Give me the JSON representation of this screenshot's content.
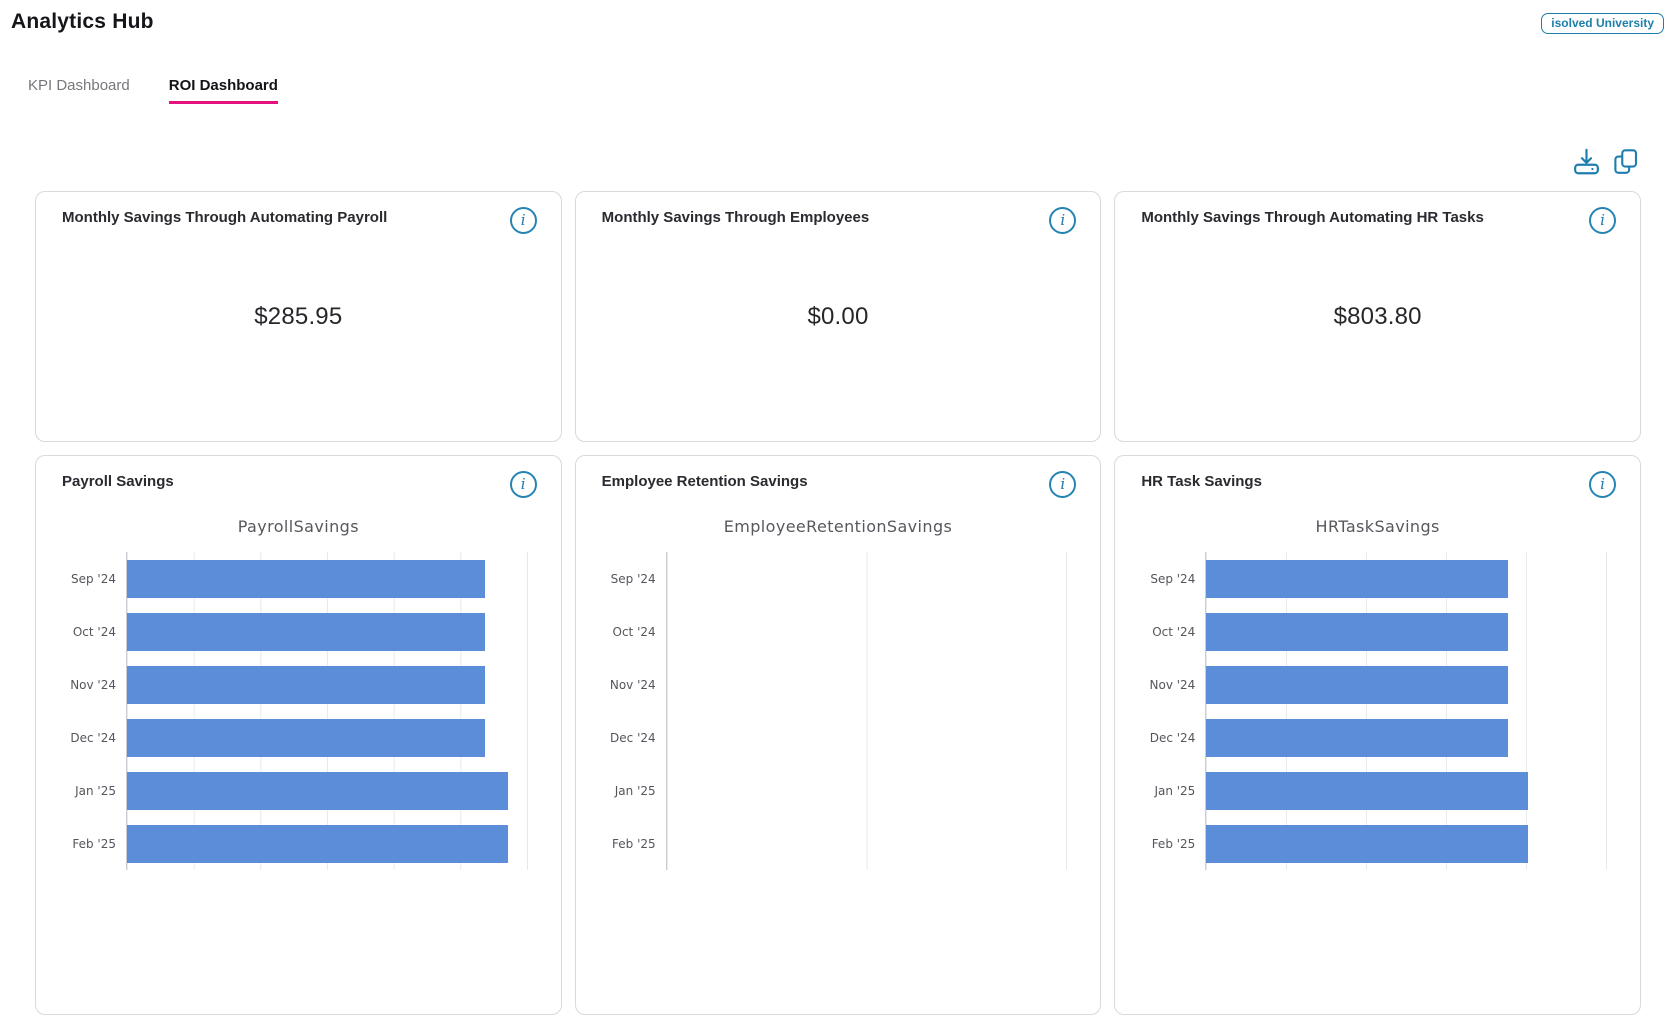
{
  "page": {
    "title": "Analytics Hub"
  },
  "header": {
    "badge_label": "isolved University"
  },
  "tabs": [
    {
      "label": "KPI Dashboard",
      "active": false
    },
    {
      "label": "ROI Dashboard",
      "active": true
    }
  ],
  "toolbar": {
    "icons": [
      "download-icon",
      "copy-icon"
    ]
  },
  "icons": {
    "info_glyph": "i"
  },
  "colors": {
    "accent_pink": "#e4117e",
    "icon_blue": "#1e7fae",
    "badge_blue": "#1d7fac",
    "bar_blue": "#5b8dd9",
    "gridline": "#e8eaee",
    "axis_line": "#c9cdd4"
  },
  "kpi_cards": [
    {
      "title": "Monthly Savings Through Automating Payroll",
      "value": "$285.95"
    },
    {
      "title": "Monthly Savings Through Employees",
      "value": "$0.00"
    },
    {
      "title": "Monthly Savings Through Automating HR Tasks",
      "value": "$803.80"
    }
  ],
  "chart_cards": [
    {
      "title": "Payroll Savings"
    },
    {
      "title": "Employee Retention Savings"
    },
    {
      "title": "HR Task Savings"
    }
  ],
  "chart_data": [
    {
      "type": "bar",
      "orientation": "horizontal",
      "title": "PayrollSavings",
      "categories": [
        "Sep '24",
        "Oct '24",
        "Nov '24",
        "Dec '24",
        "Jan '25",
        "Feb '25"
      ],
      "values": [
        268.7,
        268.7,
        268.7,
        268.7,
        285.95,
        285.95
      ],
      "xlim": [
        0,
        300
      ],
      "grid_interval": 50,
      "grid": true,
      "legend": false,
      "xlabel": "",
      "ylabel": "",
      "bar_color": "#5b8dd9",
      "note": "values estimated from gridlines; last row cut off by viewport bottom"
    },
    {
      "type": "bar",
      "orientation": "horizontal",
      "title": "EmployeeRetentionSavings",
      "categories": [
        "Sep '24",
        "Oct '24",
        "Nov '24",
        "Dec '24",
        "Jan '25",
        "Feb '25"
      ],
      "values": [
        0,
        0,
        0,
        0,
        0,
        0
      ],
      "xlim": [
        0,
        1
      ],
      "grid_interval": 0.5,
      "grid": true,
      "legend": false,
      "xlabel": "",
      "ylabel": "",
      "bar_color": "#5b8dd9",
      "note": "all values zero, empty plot; last row cut off by viewport bottom"
    },
    {
      "type": "bar",
      "orientation": "horizontal",
      "title": "HRTaskSavings",
      "categories": [
        "Sep '24",
        "Oct '24",
        "Nov '24",
        "Dec '24",
        "Jan '25",
        "Feb '25"
      ],
      "values": [
        755,
        755,
        755,
        755,
        803.8,
        803.8
      ],
      "xlim": [
        0,
        1000
      ],
      "grid_interval": 200,
      "grid": true,
      "legend": false,
      "xlabel": "",
      "ylabel": "",
      "bar_color": "#5b8dd9",
      "note": "values estimated from gridlines; last row cut off by viewport bottom"
    }
  ]
}
